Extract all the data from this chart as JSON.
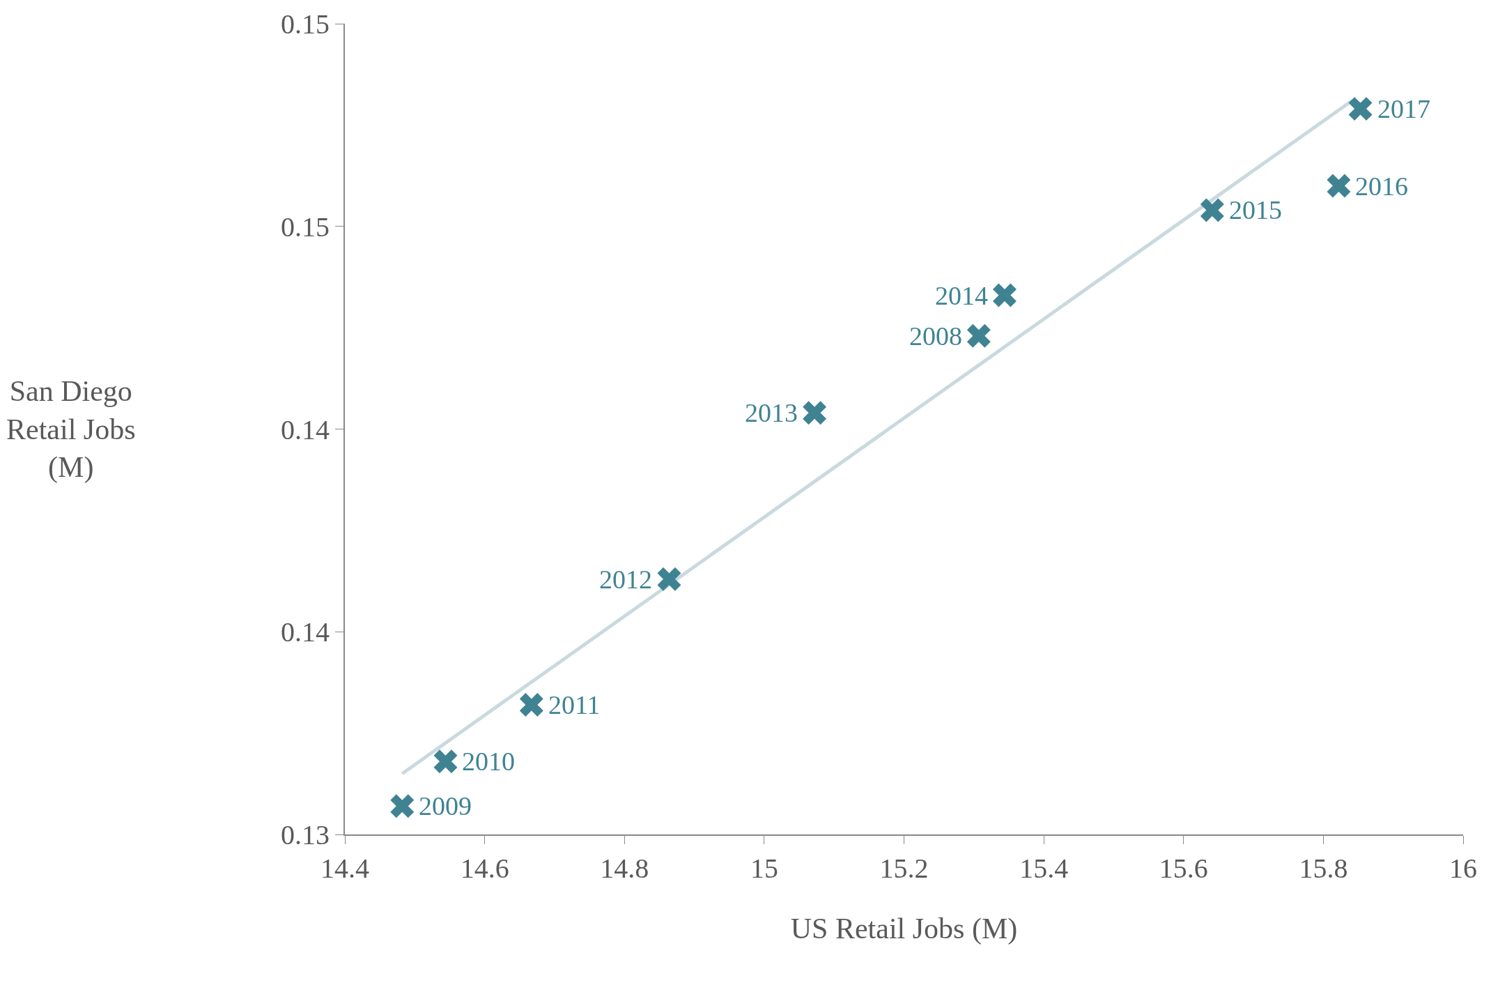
{
  "chart_data": {
    "type": "scatter",
    "xlabel": "US Retail Jobs (M)",
    "ylabel": "San Diego Retail Jobs (M)",
    "xlim": [
      14.4,
      16
    ],
    "xticks": [
      14.4,
      14.6,
      14.8,
      15,
      15.2,
      15.4,
      15.6,
      15.8,
      16
    ],
    "ylim": [
      0.13,
      0.15
    ],
    "yticks": [
      {
        "value": 0.13,
        "label": "0.13"
      },
      {
        "value": 0.135,
        "label": "0.14"
      },
      {
        "value": 0.14,
        "label": "0.14"
      },
      {
        "value": 0.145,
        "label": "0.15"
      },
      {
        "value": 0.15,
        "label": "0.15"
      }
    ],
    "annotations": [
      {
        "text": "2008",
        "x": 15.307,
        "y": 0.1423
      },
      {
        "text": "2009",
        "x": 14.482,
        "y": 0.1307
      },
      {
        "text": "2010",
        "x": 14.544,
        "y": 0.1318
      },
      {
        "text": "2011",
        "x": 14.667,
        "y": 0.1332
      },
      {
        "text": "2012",
        "x": 14.864,
        "y": 0.1363
      },
      {
        "text": "2013",
        "x": 15.072,
        "y": 0.1404
      },
      {
        "text": "2014",
        "x": 15.344,
        "y": 0.1433
      },
      {
        "text": "2015",
        "x": 15.641,
        "y": 0.1454
      },
      {
        "text": "2016",
        "x": 15.822,
        "y": 0.146
      },
      {
        "text": "2017",
        "x": 15.853,
        "y": 0.1479
      }
    ],
    "series": [
      {
        "color": "#3f8393",
        "marker": "cross",
        "x": [
          15.307,
          14.482,
          14.544,
          14.667,
          14.864,
          15.072,
          15.344,
          15.641,
          15.822,
          15.853
        ],
        "values": [
          0.1423,
          0.1307,
          0.1318,
          0.1332,
          0.1363,
          0.1404,
          0.1433,
          0.1454,
          0.146,
          0.1479
        ]
      },
      {
        "type": "line",
        "color": "#c9d9df",
        "marker": "none",
        "x": [
          14.482,
          15.841
        ],
        "values": [
          0.1315,
          0.1481
        ]
      }
    ]
  }
}
